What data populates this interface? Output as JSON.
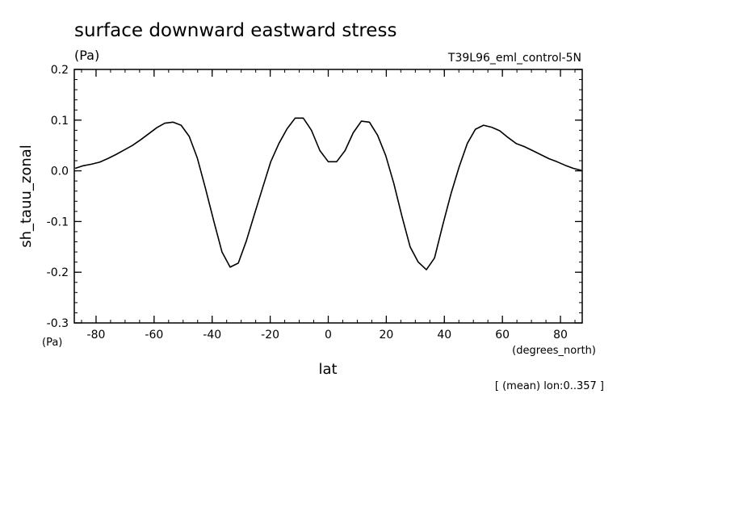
{
  "chart_data": {
    "type": "line",
    "title": "surface downward eastward stress",
    "subtitle_units": "(Pa)",
    "run_label": "T39L96_eml_control-5N",
    "ylabel": "sh_tauu_zonal",
    "ylabel_units": "(Pa)",
    "xlabel": "lat",
    "xlabel_units": "(degrees_north)",
    "footnote": "[ (mean) lon:0..357 ]",
    "xlim": [
      -87.5,
      87.5
    ],
    "ylim": [
      -0.3,
      0.2
    ],
    "x_major_ticks": [
      -80,
      -60,
      -40,
      -20,
      0,
      20,
      40,
      60,
      80
    ],
    "x_tick_labels": [
      "-80",
      "-60",
      "-40",
      "-20",
      "0",
      "20",
      "40",
      "60",
      "80"
    ],
    "y_major_ticks": [
      -0.3,
      -0.2,
      -0.1,
      0.0,
      0.1,
      0.2
    ],
    "y_tick_labels": [
      "-0.3",
      "-0.2",
      "-0.1",
      "0.0",
      "0.1",
      "0.2"
    ],
    "grid": false,
    "series": [
      {
        "x": [
          -87.2,
          -84.4,
          -81.6,
          -78.8,
          -76.0,
          -73.2,
          -70.4,
          -67.5,
          -64.7,
          -61.9,
          -59.1,
          -56.3,
          -53.5,
          -50.7,
          -47.9,
          -45.1,
          -42.3,
          -39.4,
          -36.6,
          -33.8,
          -31.0,
          -28.2,
          -25.4,
          -22.6,
          -19.8,
          -17.0,
          -14.2,
          -11.4,
          -8.6,
          -5.8,
          -2.9,
          0.0,
          2.9,
          5.8,
          8.6,
          11.4,
          14.2,
          17.0,
          19.8,
          22.6,
          25.4,
          28.2,
          31.0,
          33.8,
          36.6,
          39.4,
          42.3,
          45.1,
          47.9,
          50.7,
          53.5,
          56.3,
          59.1,
          61.9,
          64.7,
          67.5,
          70.4,
          73.2,
          76.0,
          78.8,
          81.6,
          84.4,
          87.2
        ],
        "y": [
          0.005,
          0.01,
          0.013,
          0.017,
          0.024,
          0.032,
          0.041,
          0.05,
          0.061,
          0.073,
          0.085,
          0.094,
          0.096,
          0.09,
          0.068,
          0.025,
          -0.035,
          -0.1,
          -0.16,
          -0.19,
          -0.182,
          -0.138,
          -0.085,
          -0.033,
          0.018,
          0.054,
          0.083,
          0.104,
          0.104,
          0.08,
          0.04,
          0.018,
          0.018,
          0.04,
          0.075,
          0.098,
          0.096,
          0.07,
          0.03,
          -0.025,
          -0.09,
          -0.15,
          -0.18,
          -0.195,
          -0.172,
          -0.108,
          -0.045,
          0.008,
          0.054,
          0.082,
          0.09,
          0.086,
          0.079,
          0.066,
          0.054,
          0.048,
          0.04,
          0.032,
          0.024,
          0.018,
          0.011,
          0.005,
          0.001
        ]
      }
    ]
  }
}
